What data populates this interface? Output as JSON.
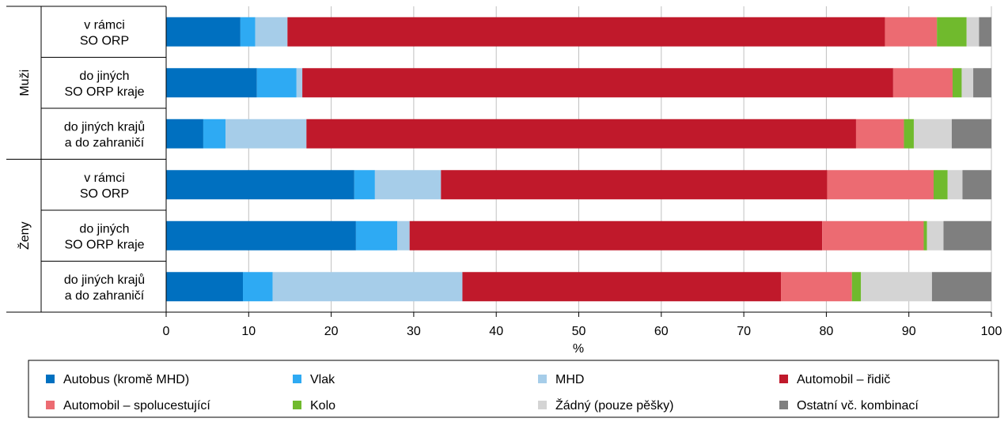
{
  "chart_data": {
    "type": "bar",
    "orientation": "horizontal",
    "stacked": true,
    "xlabel": "%",
    "xlim": [
      0,
      100
    ],
    "xticks": [
      "0",
      "10",
      "20",
      "30",
      "40",
      "50",
      "60",
      "70",
      "80",
      "90",
      "100"
    ],
    "grid": "vertical",
    "legend_position": "bottom",
    "groups": [
      {
        "label": "Muži",
        "categories": [
          [
            "v rámci",
            "SO ORP"
          ],
          [
            "do jiných",
            "SO ORP kraje"
          ],
          [
            "do jiných krajů",
            "a do zahraničí"
          ]
        ]
      },
      {
        "label": "Ženy",
        "categories": [
          [
            "v rámci",
            "SO ORP"
          ],
          [
            "do jiných",
            "SO ORP kraje"
          ],
          [
            "do jiných krajů",
            "a do zahraničí"
          ]
        ]
      }
    ],
    "series": [
      {
        "name": "Autobus (kromě MHD)",
        "color": "#0070c0",
        "values": [
          9.0,
          11.0,
          4.5,
          22.8,
          23.0,
          9.3
        ]
      },
      {
        "name": "Vlak",
        "color": "#2eaaf3",
        "values": [
          1.8,
          4.8,
          2.7,
          2.5,
          5.0,
          3.6
        ]
      },
      {
        "name": "MHD",
        "color": "#a6cde9",
        "values": [
          3.9,
          0.7,
          9.8,
          8.0,
          1.5,
          23.0
        ]
      },
      {
        "name": "Automobil – řidič",
        "color": "#c0192b",
        "values": [
          72.4,
          71.6,
          66.6,
          46.8,
          50.0,
          38.6
        ]
      },
      {
        "name": "Automobil – spolucestující",
        "color": "#ec6b72",
        "values": [
          6.3,
          7.2,
          5.8,
          12.9,
          12.3,
          8.6
        ]
      },
      {
        "name": "Kolo",
        "color": "#70ba2d",
        "values": [
          3.6,
          1.1,
          1.2,
          1.7,
          0.4,
          1.1
        ]
      },
      {
        "name": "Žádný (pouze pěšky)",
        "color": "#d4d4d4",
        "values": [
          1.5,
          1.4,
          4.6,
          1.8,
          2.0,
          8.6
        ]
      },
      {
        "name": "Ostatní vč. kombinací",
        "color": "#7f7f7f",
        "values": [
          1.5,
          2.2,
          4.8,
          3.5,
          5.8,
          7.2
        ]
      }
    ]
  }
}
